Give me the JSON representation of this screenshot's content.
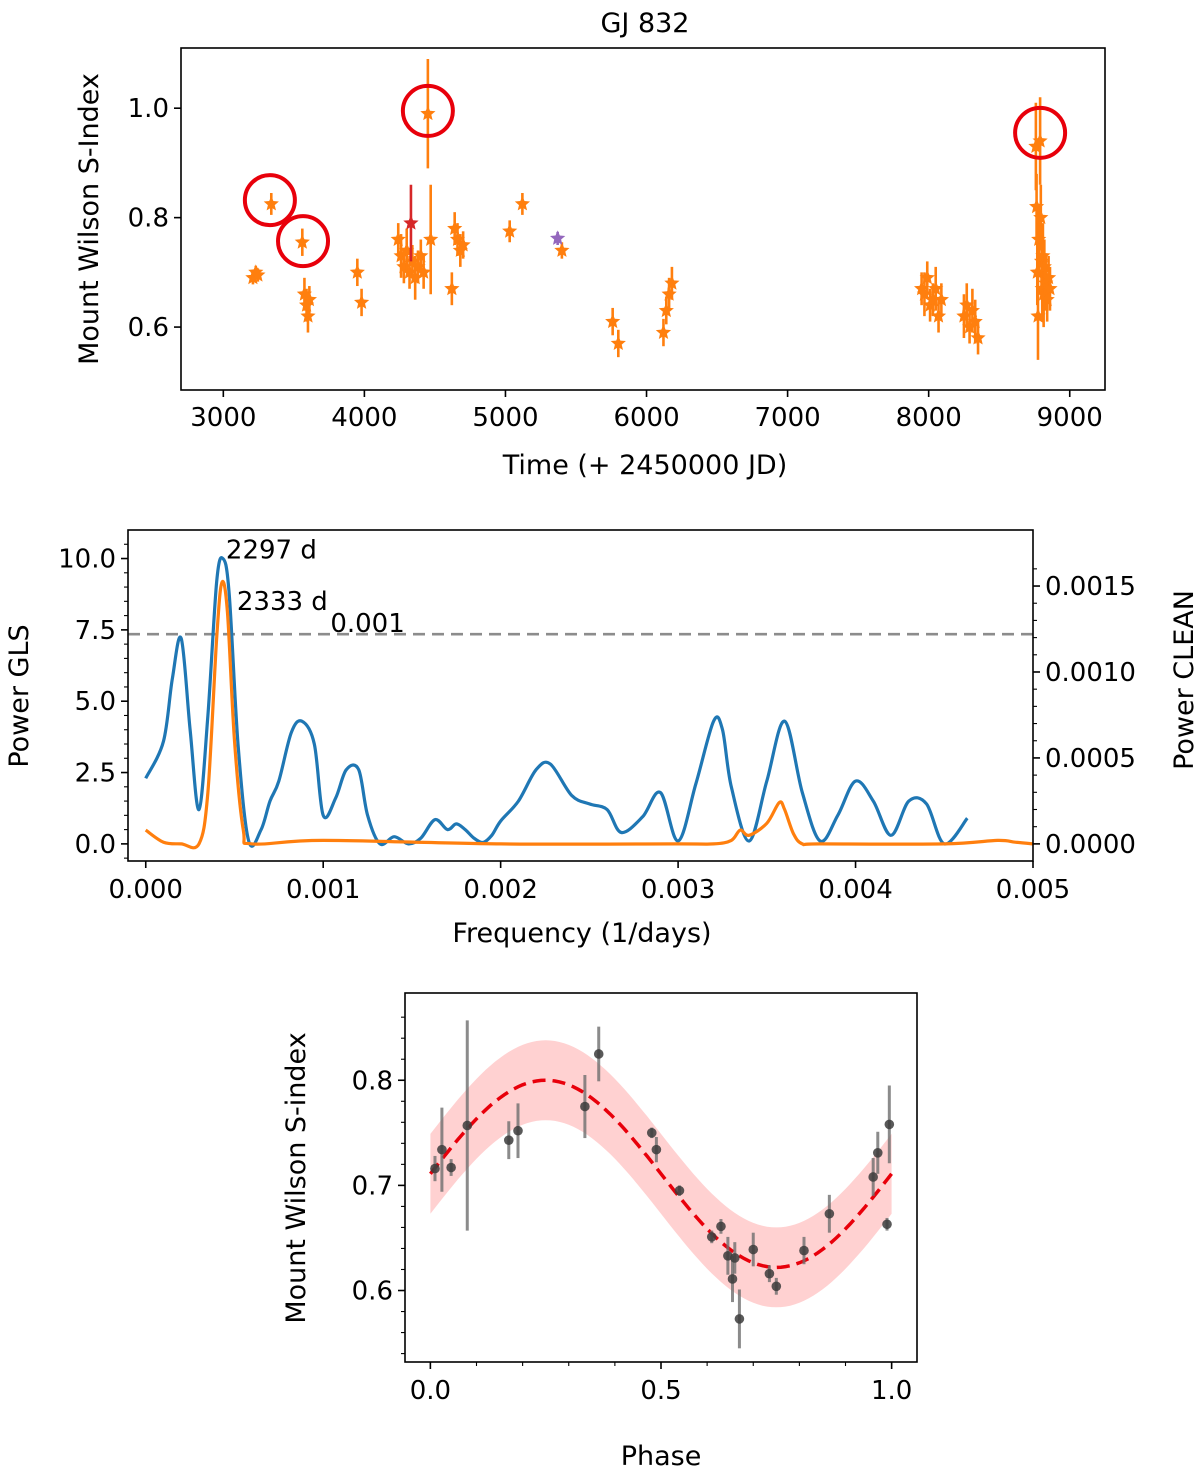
{
  "chart_data": [
    {
      "type": "scatter",
      "title": "GJ 832",
      "xlabel": "Time (+ 2450000 JD)",
      "ylabel": "Mount Wilson S-Index",
      "xlim": [
        2700,
        9250
      ],
      "ylim": [
        0.485,
        1.11
      ],
      "xticks": [
        3000,
        4000,
        5000,
        6000,
        7000,
        8000,
        9000
      ],
      "yticks": [
        0.6,
        0.8,
        1.0
      ],
      "yticklabels": [
        "0.6",
        "0.8",
        "1.0"
      ],
      "colors": {
        "main": "#ff7f0e",
        "highlight": "#d62728",
        "alt": "#9467bd",
        "circle": "#e8000b"
      },
      "series": [
        {
          "name": "observations",
          "color": "#ff7f0e",
          "points": [
            [
              3210,
              0.69,
              0.012
            ],
            [
              3230,
              0.7,
              0.012
            ],
            [
              3245,
              0.695,
              0.012
            ],
            [
              3340,
              0.825,
              0.02
            ],
            [
              3560,
              0.755,
              0.025
            ],
            [
              3575,
              0.66,
              0.03
            ],
            [
              3590,
              0.64,
              0.03
            ],
            [
              3600,
              0.62,
              0.03
            ],
            [
              3610,
              0.65,
              0.025
            ],
            [
              3950,
              0.7,
              0.025
            ],
            [
              3980,
              0.645,
              0.025
            ],
            [
              4240,
              0.76,
              0.03
            ],
            [
              4260,
              0.73,
              0.04
            ],
            [
              4280,
              0.71,
              0.03
            ],
            [
              4300,
              0.74,
              0.04
            ],
            [
              4320,
              0.7,
              0.03
            ],
            [
              4340,
              0.72,
              0.03
            ],
            [
              4360,
              0.69,
              0.04
            ],
            [
              4380,
              0.71,
              0.03
            ],
            [
              4400,
              0.73,
              0.03
            ],
            [
              4420,
              0.7,
              0.03
            ],
            [
              4450,
              0.99,
              0.1
            ],
            [
              4470,
              0.76,
              0.1
            ],
            [
              4620,
              0.67,
              0.03
            ],
            [
              4640,
              0.78,
              0.03
            ],
            [
              4660,
              0.76,
              0.03
            ],
            [
              4680,
              0.74,
              0.03
            ],
            [
              4700,
              0.75,
              0.025
            ],
            [
              5030,
              0.775,
              0.02
            ],
            [
              5120,
              0.825,
              0.02
            ],
            [
              5400,
              0.74,
              0.015
            ],
            [
              5760,
              0.61,
              0.025
            ],
            [
              5800,
              0.57,
              0.025
            ],
            [
              6120,
              0.59,
              0.025
            ],
            [
              6140,
              0.63,
              0.025
            ],
            [
              6160,
              0.66,
              0.03
            ],
            [
              6180,
              0.68,
              0.03
            ],
            [
              7950,
              0.67,
              0.03
            ],
            [
              7970,
              0.66,
              0.04
            ],
            [
              7990,
              0.69,
              0.03
            ],
            [
              8010,
              0.64,
              0.03
            ],
            [
              8030,
              0.65,
              0.03
            ],
            [
              8050,
              0.67,
              0.04
            ],
            [
              8070,
              0.62,
              0.03
            ],
            [
              8090,
              0.65,
              0.03
            ],
            [
              8250,
              0.62,
              0.04
            ],
            [
              8270,
              0.64,
              0.04
            ],
            [
              8290,
              0.6,
              0.03
            ],
            [
              8310,
              0.63,
              0.04
            ],
            [
              8330,
              0.61,
              0.04
            ],
            [
              8350,
              0.58,
              0.03
            ],
            [
              8760,
              0.93,
              0.08
            ],
            [
              8765,
              0.82,
              0.06
            ],
            [
              8770,
              0.7,
              0.06
            ],
            [
              8775,
              0.62,
              0.08
            ],
            [
              8780,
              0.76,
              0.06
            ],
            [
              8790,
              0.94,
              0.08
            ],
            [
              8795,
              0.8,
              0.06
            ],
            [
              8800,
              0.72,
              0.06
            ],
            [
              8805,
              0.67,
              0.06
            ],
            [
              8810,
              0.73,
              0.06
            ],
            [
              8815,
              0.66,
              0.06
            ],
            [
              8820,
              0.71,
              0.05
            ],
            [
              8830,
              0.68,
              0.05
            ],
            [
              8840,
              0.65,
              0.04
            ],
            [
              8850,
              0.69,
              0.04
            ],
            [
              8860,
              0.67,
              0.04
            ]
          ]
        },
        {
          "name": "highlight",
          "color": "#d62728",
          "points": [
            [
              4330,
              0.79,
              0.07
            ]
          ]
        },
        {
          "name": "alt",
          "color": "#9467bd",
          "points": [
            [
              5370,
              0.762,
              0.012
            ]
          ]
        }
      ],
      "annotations": {
        "circled": [
          [
            3330,
            0.832
          ],
          [
            3565,
            0.757
          ],
          [
            4450,
            0.995
          ],
          [
            8790,
            0.955
          ]
        ]
      }
    },
    {
      "type": "line",
      "xlabel": "Frequency (1/days)",
      "ylabel_left": "Power GLS",
      "ylabel_right": "Power CLEAN",
      "xlim": [
        -0.0001,
        0.005
      ],
      "ylim_left": [
        -0.6,
        11.0
      ],
      "ylim_right": [
        -9.96e-05,
        0.001826
      ],
      "xticks": [
        0.0,
        0.001,
        0.002,
        0.003,
        0.004,
        0.005
      ],
      "xticklabels": [
        "0.000",
        "0.001",
        "0.002",
        "0.003",
        "0.004",
        "0.005"
      ],
      "yticks_left": [
        0.0,
        2.5,
        5.0,
        7.5,
        10.0
      ],
      "yticklabels_left": [
        "0.0",
        "2.5",
        "5.0",
        "7.5",
        "10.0"
      ],
      "yticks_right": [
        0.0,
        0.0005,
        0.001,
        0.0015
      ],
      "yticklabels_right": [
        "0.0000",
        "0.0005",
        "0.0010",
        "0.0015"
      ],
      "threshold": {
        "value": 7.35,
        "label": "0.001",
        "color": "#8c8c8c"
      },
      "peak_labels": [
        {
          "text": "2297 d",
          "x": 0.000435,
          "y": 10.0,
          "color": "#1f77b4"
        },
        {
          "text": "2333 d",
          "x": 0.000429,
          "y": 9.3,
          "color": "#ff7f0e"
        }
      ],
      "series": [
        {
          "name": "GLS",
          "color": "#1f77b4",
          "x": [
            0.0,
            0.0001,
            0.00015,
            0.0002,
            0.00025,
            0.0003,
            0.00035,
            0.0004,
            0.000435,
            0.00047,
            0.00052,
            0.00058,
            0.00065,
            0.0007,
            0.00075,
            0.00082,
            0.00088,
            0.00095,
            0.001,
            0.00107,
            0.00113,
            0.0012,
            0.00125,
            0.00132,
            0.0014,
            0.00148,
            0.00155,
            0.00163,
            0.0017,
            0.00175,
            0.0018,
            0.00185,
            0.0019,
            0.00195,
            0.002,
            0.0021,
            0.0022,
            0.00228,
            0.0024,
            0.0025,
            0.0026,
            0.00268,
            0.0028,
            0.0029,
            0.003,
            0.0031,
            0.0032,
            0.00325,
            0.0033,
            0.0034,
            0.0035,
            0.0036,
            0.0037,
            0.0038,
            0.0039,
            0.004,
            0.0041,
            0.0042,
            0.0043,
            0.0044,
            0.0045,
            0.00463
          ],
          "y": [
            2.3,
            3.6,
            5.8,
            7.2,
            4.0,
            1.2,
            4.5,
            9.2,
            10.0,
            8.8,
            3.5,
            0.1,
            0.5,
            1.5,
            2.2,
            3.9,
            4.3,
            3.5,
            1.0,
            1.6,
            2.6,
            2.6,
            1.0,
            0.0,
            0.25,
            0.0,
            0.2,
            0.85,
            0.5,
            0.7,
            0.5,
            0.2,
            0.05,
            0.3,
            0.8,
            1.5,
            2.6,
            2.8,
            1.7,
            1.4,
            1.2,
            0.4,
            0.95,
            1.8,
            0.1,
            2.1,
            4.3,
            4.0,
            2.0,
            0.1,
            2.2,
            4.3,
            1.8,
            0.1,
            1.0,
            2.2,
            1.5,
            0.3,
            1.5,
            1.4,
            0.0,
            0.9
          ]
        },
        {
          "name": "CLEAN",
          "color": "#ff7f0e",
          "x": [
            0.0,
            0.0001,
            0.0002,
            0.0003,
            0.00035,
            0.0004,
            0.000429,
            0.00046,
            0.0005,
            0.00055,
            0.0006,
            0.001,
            0.002,
            0.003,
            0.0032,
            0.0033,
            0.00335,
            0.0034,
            0.0035,
            0.00357,
            0.0036,
            0.00365,
            0.0037,
            0.0038,
            0.0045,
            0.0048,
            0.0049,
            0.005
          ],
          "y": [
            8e-05,
            1e-05,
            0.0,
            0.0,
            0.0003,
            0.0012,
            0.00152,
            0.00135,
            0.0006,
            8e-05,
            0.0,
            2e-05,
            0.0,
            0.0,
            0.0,
            2e-05,
            8e-05,
            5e-05,
            0.00012,
            0.00024,
            0.0002,
            6e-05,
            0.0,
            0.0,
            0.0,
            2e-05,
            1e-05,
            0.0
          ]
        }
      ]
    },
    {
      "type": "scatter",
      "xlabel": "Phase",
      "ylabel": "Mount Wilson S-index",
      "xlim": [
        -0.055,
        1.055
      ],
      "ylim": [
        0.532,
        0.883
      ],
      "xticks": [
        0.0,
        0.5,
        1.0
      ],
      "xticklabels": [
        "0.0",
        "0.5",
        "1.0"
      ],
      "yticks": [
        0.6,
        0.7,
        0.8
      ],
      "yticklabels": [
        "0.6",
        "0.7",
        "0.8"
      ],
      "model": {
        "mean": 0.711,
        "amplitude": 0.089,
        "band": 0.038,
        "color": "#e8000b",
        "band_color": "#ff9999"
      },
      "series": [
        {
          "name": "binned phase",
          "color": "#3c3c3c",
          "points": [
            [
              0.01,
              0.716,
              0.012
            ],
            [
              0.025,
              0.734,
              0.04
            ],
            [
              0.045,
              0.717,
              0.008
            ],
            [
              0.08,
              0.757,
              0.1
            ],
            [
              0.17,
              0.743,
              0.018
            ],
            [
              0.19,
              0.752,
              0.026
            ],
            [
              0.335,
              0.775,
              0.03
            ],
            [
              0.365,
              0.825,
              0.026
            ],
            [
              0.48,
              0.75,
              0.005
            ],
            [
              0.49,
              0.734,
              0.012
            ],
            [
              0.54,
              0.695,
              0.005
            ],
            [
              0.61,
              0.651,
              0.006
            ],
            [
              0.63,
              0.661,
              0.007
            ],
            [
              0.645,
              0.633,
              0.018
            ],
            [
              0.655,
              0.611,
              0.022
            ],
            [
              0.66,
              0.631,
              0.015
            ],
            [
              0.67,
              0.573,
              0.028
            ],
            [
              0.7,
              0.639,
              0.016
            ],
            [
              0.735,
              0.616,
              0.008
            ],
            [
              0.75,
              0.604,
              0.008
            ],
            [
              0.81,
              0.638,
              0.013
            ],
            [
              0.865,
              0.673,
              0.018
            ],
            [
              0.96,
              0.708,
              0.018
            ],
            [
              0.97,
              0.731,
              0.02
            ],
            [
              0.99,
              0.663,
              0.006
            ],
            [
              0.995,
              0.758,
              0.037
            ]
          ]
        }
      ]
    }
  ]
}
